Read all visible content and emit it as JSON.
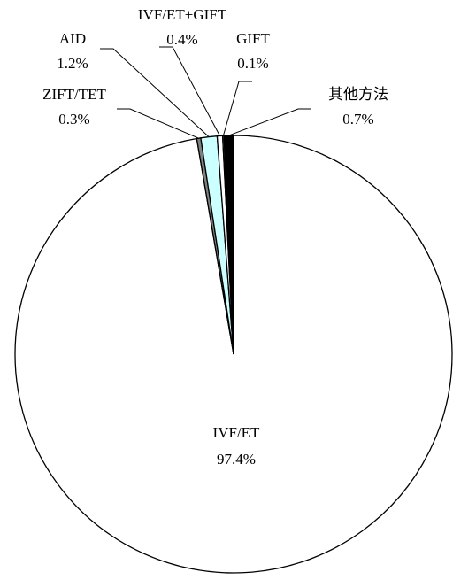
{
  "chart_data": {
    "type": "pie",
    "categories": [
      "IVF/ET",
      "ZIFT/TET",
      "AID",
      "IVF/ET+GIFT",
      "GIFT",
      "其他方法"
    ],
    "values": [
      97.4,
      0.3,
      1.2,
      0.4,
      0.1,
      0.7
    ],
    "value_labels": [
      "97.4%",
      "0.3%",
      "1.2%",
      "0.4%",
      "0.1%",
      "0.7%"
    ],
    "colors": [
      "#ffffff",
      "#808080",
      "#ccffff",
      "#ffffff",
      "#a0a0a0",
      "#000000"
    ]
  }
}
